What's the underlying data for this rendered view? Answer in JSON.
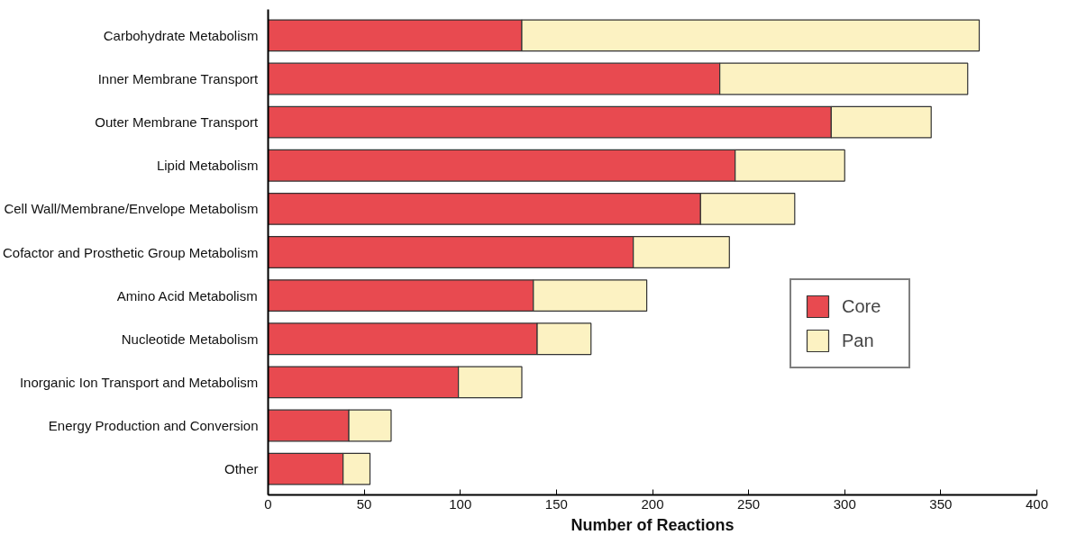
{
  "chart_data": {
    "type": "bar",
    "orientation": "horizontal",
    "stacked": true,
    "xlabel": "Number of Reactions",
    "categories": [
      "Carbohydrate Metabolism",
      "Inner Membrane Transport",
      "Outer Membrane Transport",
      "Lipid Metabolism",
      "Cell Wall/Membrane/Envelope Metabolism",
      "Cofactor and Prosthetic Group Metabolism",
      "Amino Acid Metabolism",
      "Nucleotide Metabolism",
      "Inorganic Ion Transport and Metabolism",
      "Energy Production and Conversion",
      "Other"
    ],
    "series": [
      {
        "name": "Core",
        "color": "#e84a50",
        "values": [
          132,
          235,
          293,
          243,
          225,
          190,
          138,
          140,
          99,
          42,
          39
        ]
      },
      {
        "name": "Pan",
        "color": "#fcf2c2",
        "values": [
          238,
          129,
          52,
          57,
          49,
          50,
          59,
          28,
          33,
          22,
          14
        ]
      }
    ],
    "xlim": [
      0,
      400
    ],
    "xticks": [
      0,
      50,
      100,
      150,
      200,
      250,
      300,
      350,
      400
    ],
    "grid": false,
    "legend": "bottom right"
  }
}
